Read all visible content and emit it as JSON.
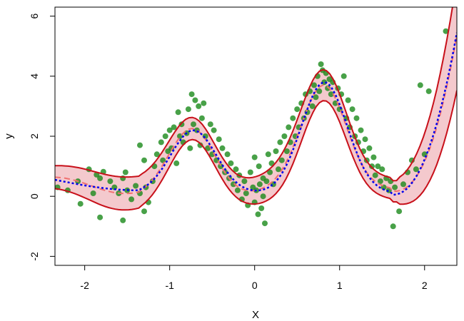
{
  "chart_data": {
    "type": "scatter",
    "xlabel": "X",
    "ylabel": "y",
    "xlim": [
      -2.35,
      2.38
    ],
    "ylim": [
      -2.3,
      6.3
    ],
    "xticks": [
      -2,
      -1,
      0,
      1,
      2
    ],
    "yticks": [
      -2,
      0,
      2,
      4,
      6
    ],
    "grid": false,
    "colors": {
      "points": "#1a8a1a",
      "band_fill": "#f4c9cd",
      "band_edge": "#c8101a",
      "mean_line": "#f07070",
      "true_line": "#0000ee"
    },
    "points": [
      [
        -2.32,
        0.3
      ],
      [
        -2.2,
        0.2
      ],
      [
        -2.08,
        0.5
      ],
      [
        -2.05,
        -0.25
      ],
      [
        -1.95,
        0.9
      ],
      [
        -1.9,
        0.1
      ],
      [
        -1.86,
        0.72
      ],
      [
        -1.82,
        0.6
      ],
      [
        -1.78,
        0.82
      ],
      [
        -1.7,
        0.5
      ],
      [
        -1.65,
        0.3
      ],
      [
        -1.6,
        0.1
      ],
      [
        -1.55,
        0.6
      ],
      [
        -1.52,
        0.8
      ],
      [
        -1.82,
        -0.7
      ],
      [
        -1.5,
        0.2
      ],
      [
        -1.45,
        -0.1
      ],
      [
        -1.55,
        -0.8
      ],
      [
        -1.4,
        0.35
      ],
      [
        -1.35,
        0.1
      ],
      [
        -1.3,
        -0.5
      ],
      [
        -1.35,
        1.7
      ],
      [
        -1.3,
        1.2
      ],
      [
        -1.28,
        0.3
      ],
      [
        -1.25,
        -0.2
      ],
      [
        -1.2,
        0.5
      ],
      [
        -1.18,
        1.0
      ],
      [
        -1.15,
        1.4
      ],
      [
        -1.1,
        1.8
      ],
      [
        -1.08,
        1.2
      ],
      [
        -1.05,
        2.0
      ],
      [
        -1.02,
        1.5
      ],
      [
        -1.0,
        2.2
      ],
      [
        -0.98,
        1.6
      ],
      [
        -0.95,
        2.3
      ],
      [
        -0.92,
        1.1
      ],
      [
        -0.9,
        2.8
      ],
      [
        -0.88,
        2.0
      ],
      [
        -0.86,
        2.4
      ],
      [
        -0.84,
        1.8
      ],
      [
        -0.8,
        2.1
      ],
      [
        -0.78,
        2.9
      ],
      [
        -0.76,
        1.6
      ],
      [
        -0.74,
        3.4
      ],
      [
        -0.72,
        2.4
      ],
      [
        -0.7,
        3.2
      ],
      [
        -0.68,
        2.2
      ],
      [
        -0.66,
        3.0
      ],
      [
        -0.64,
        1.7
      ],
      [
        -0.62,
        2.6
      ],
      [
        -0.6,
        3.1
      ],
      [
        -0.58,
        2.0
      ],
      [
        -0.55,
        1.6
      ],
      [
        -0.52,
        2.4
      ],
      [
        -0.5,
        1.4
      ],
      [
        -0.48,
        2.2
      ],
      [
        -0.45,
        1.2
      ],
      [
        -0.42,
        1.9
      ],
      [
        -0.4,
        1.0
      ],
      [
        -0.38,
        1.6
      ],
      [
        -0.35,
        0.8
      ],
      [
        -0.32,
        1.4
      ],
      [
        -0.3,
        0.6
      ],
      [
        -0.28,
        1.1
      ],
      [
        -0.25,
        0.4
      ],
      [
        -0.22,
        0.9
      ],
      [
        -0.2,
        0.2
      ],
      [
        -0.18,
        0.7
      ],
      [
        -0.15,
        -0.1
      ],
      [
        -0.12,
        0.5
      ],
      [
        -0.1,
        0.1
      ],
      [
        -0.08,
        -0.3
      ],
      [
        -0.05,
        0.8
      ],
      [
        -0.02,
        0.3
      ],
      [
        0.0,
        -0.2
      ],
      [
        0.02,
        0.2
      ],
      [
        0.04,
        -0.6
      ],
      [
        0.06,
        0.4
      ],
      [
        0.08,
        -0.4
      ],
      [
        0.1,
        0.0
      ],
      [
        0.12,
        -0.9
      ],
      [
        0.0,
        1.3
      ],
      [
        0.05,
        1.0
      ],
      [
        0.1,
        0.6
      ],
      [
        0.14,
        0.5
      ],
      [
        0.16,
        1.4
      ],
      [
        0.18,
        0.8
      ],
      [
        0.2,
        1.1
      ],
      [
        0.22,
        0.4
      ],
      [
        0.25,
        1.5
      ],
      [
        0.28,
        0.9
      ],
      [
        0.3,
        1.8
      ],
      [
        0.32,
        1.2
      ],
      [
        0.35,
        2.0
      ],
      [
        0.38,
        1.5
      ],
      [
        0.4,
        2.3
      ],
      [
        0.42,
        1.8
      ],
      [
        0.45,
        2.6
      ],
      [
        0.48,
        2.0
      ],
      [
        0.5,
        2.9
      ],
      [
        0.52,
        2.3
      ],
      [
        0.55,
        3.1
      ],
      [
        0.58,
        2.6
      ],
      [
        0.6,
        3.4
      ],
      [
        0.62,
        2.8
      ],
      [
        0.65,
        3.5
      ],
      [
        0.68,
        3.0
      ],
      [
        0.7,
        3.7
      ],
      [
        0.72,
        3.3
      ],
      [
        0.74,
        4.0
      ],
      [
        0.76,
        3.5
      ],
      [
        0.78,
        4.4
      ],
      [
        0.8,
        4.2
      ],
      [
        0.82,
        3.8
      ],
      [
        0.84,
        4.1
      ],
      [
        0.86,
        3.6
      ],
      [
        0.88,
        3.9
      ],
      [
        0.9,
        3.4
      ],
      [
        0.92,
        3.8
      ],
      [
        0.95,
        3.1
      ],
      [
        0.98,
        3.6
      ],
      [
        1.0,
        2.9
      ],
      [
        1.02,
        3.4
      ],
      [
        1.05,
        4.0
      ],
      [
        1.08,
        2.6
      ],
      [
        1.1,
        3.2
      ],
      [
        1.12,
        2.3
      ],
      [
        1.15,
        2.9
      ],
      [
        1.18,
        2.0
      ],
      [
        1.2,
        2.6
      ],
      [
        1.22,
        1.8
      ],
      [
        1.25,
        2.2
      ],
      [
        1.28,
        1.5
      ],
      [
        1.3,
        1.9
      ],
      [
        1.32,
        1.2
      ],
      [
        1.35,
        1.6
      ],
      [
        1.38,
        1.0
      ],
      [
        1.4,
        1.3
      ],
      [
        1.42,
        0.7
      ],
      [
        1.45,
        1.0
      ],
      [
        1.48,
        0.5
      ],
      [
        1.5,
        0.9
      ],
      [
        1.52,
        0.3
      ],
      [
        1.55,
        0.6
      ],
      [
        1.58,
        0.2
      ],
      [
        1.6,
        0.5
      ],
      [
        1.63,
        -1.0
      ],
      [
        1.65,
        0.3
      ],
      [
        1.7,
        -0.5
      ],
      [
        1.75,
        0.4
      ],
      [
        1.8,
        0.8
      ],
      [
        1.85,
        1.2
      ],
      [
        1.9,
        0.9
      ],
      [
        1.95,
        3.7
      ],
      [
        2.0,
        1.4
      ],
      [
        2.05,
        3.5
      ],
      [
        2.25,
        5.5
      ]
    ]
  }
}
